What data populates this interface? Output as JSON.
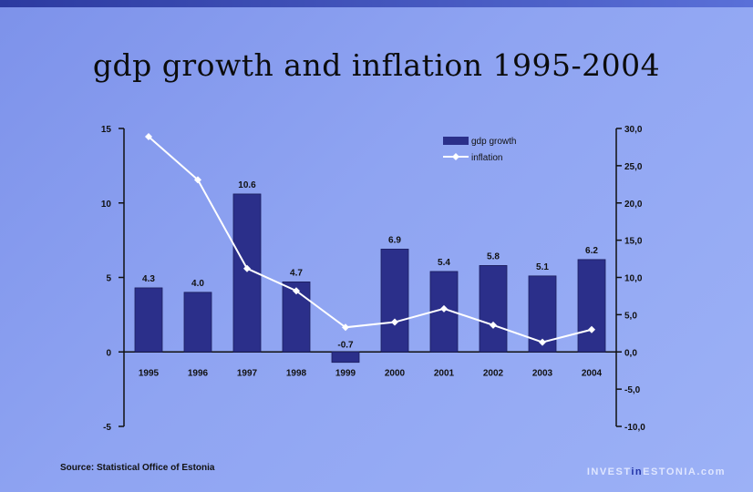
{
  "slide": {
    "title": "gdp growth and inflation 1995-2004",
    "source": "Source: Statistical Office of Estonia",
    "brand_prefix": "INVEST",
    "brand_accent": "in",
    "brand_suffix": "ESTONIA.com"
  },
  "colors": {
    "bar_fill": "#2b2f8a",
    "line": "#ffffff",
    "axis": "#111111"
  },
  "chart_data": {
    "type": "bar",
    "title": "gdp growth and inflation 1995-2004",
    "categories": [
      "1995",
      "1996",
      "1997",
      "1998",
      "1999",
      "2000",
      "2001",
      "2002",
      "2003",
      "2004"
    ],
    "series": [
      {
        "name": "gdp growth",
        "type": "bar",
        "axis": "left",
        "values": [
          4.3,
          4.0,
          10.6,
          4.7,
          -0.7,
          6.9,
          5.4,
          5.8,
          5.1,
          6.2
        ],
        "labels": [
          "4.3",
          "4.0",
          "10.6",
          "4.7",
          "-0.7",
          "6.9",
          "5.4",
          "5.8",
          "5.1",
          "6.2"
        ]
      },
      {
        "name": "inflation",
        "type": "line",
        "axis": "right",
        "values": [
          28.9,
          23.1,
          11.2,
          8.2,
          3.3,
          4.0,
          5.8,
          3.6,
          1.3,
          3.0
        ]
      }
    ],
    "y_left": {
      "min": -5,
      "max": 15,
      "ticks": [
        "15",
        "10",
        "5",
        "0",
        "-5"
      ]
    },
    "y_right": {
      "min": -10,
      "max": 30,
      "ticks": [
        "30,0",
        "25,0",
        "20,0",
        "15,0",
        "10,0",
        "5,0",
        "0,0",
        "-5,0",
        "-10,0"
      ]
    },
    "legend": {
      "position": "top-right",
      "entries": [
        "gdp growth",
        "inflation"
      ]
    },
    "grid": false
  }
}
